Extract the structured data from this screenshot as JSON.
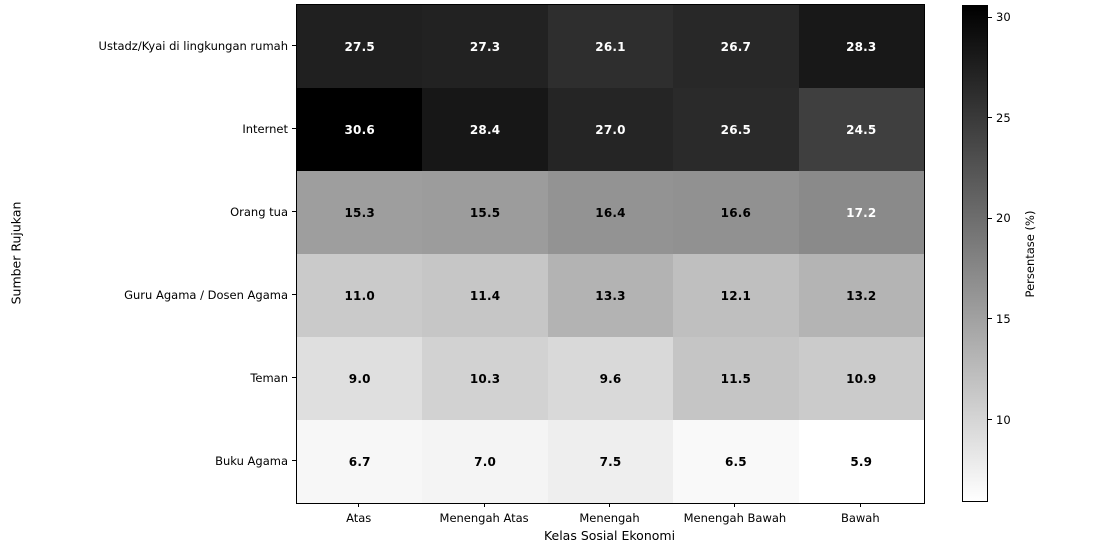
{
  "figure": {
    "background_color": "#ffffff",
    "spine_color": "#000000"
  },
  "chart_data": {
    "type": "heatmap",
    "xlabel": "Kelas Sosial Ekonomi",
    "ylabel": "Sumber Rujukan",
    "x_categories": [
      "Atas",
      "Menengah Atas",
      "Menengah",
      "Menengah Bawah",
      "Bawah"
    ],
    "y_categories": [
      "Ustadz/Kyai di lingkungan rumah",
      "Internet",
      "Orang tua",
      "Guru Agama / Dosen Agama",
      "Teman",
      "Buku Agama"
    ],
    "values": [
      [
        27.5,
        27.3,
        26.1,
        26.7,
        28.3
      ],
      [
        30.6,
        28.4,
        27.0,
        26.5,
        24.5
      ],
      [
        15.3,
        15.5,
        16.4,
        16.6,
        17.2
      ],
      [
        11.0,
        11.4,
        13.3,
        12.1,
        13.2
      ],
      [
        9.0,
        10.3,
        9.6,
        11.5,
        10.9
      ],
      [
        6.7,
        7.0,
        7.5,
        6.5,
        5.9
      ]
    ],
    "value_decimals": 1,
    "colormap": "gray_r",
    "vmin": 5.9,
    "vmax": 30.6,
    "annotation_white_text_above": 17,
    "annotation_colors": {
      "light": "#ffffff",
      "dark": "#000000"
    },
    "colorbar": {
      "label": "Persentase (%)",
      "ticks": [
        10,
        15,
        20,
        25,
        30
      ],
      "top_color": "#000000",
      "bottom_color": "#ffffff"
    },
    "legend": "colorbar-right",
    "grid": false
  }
}
